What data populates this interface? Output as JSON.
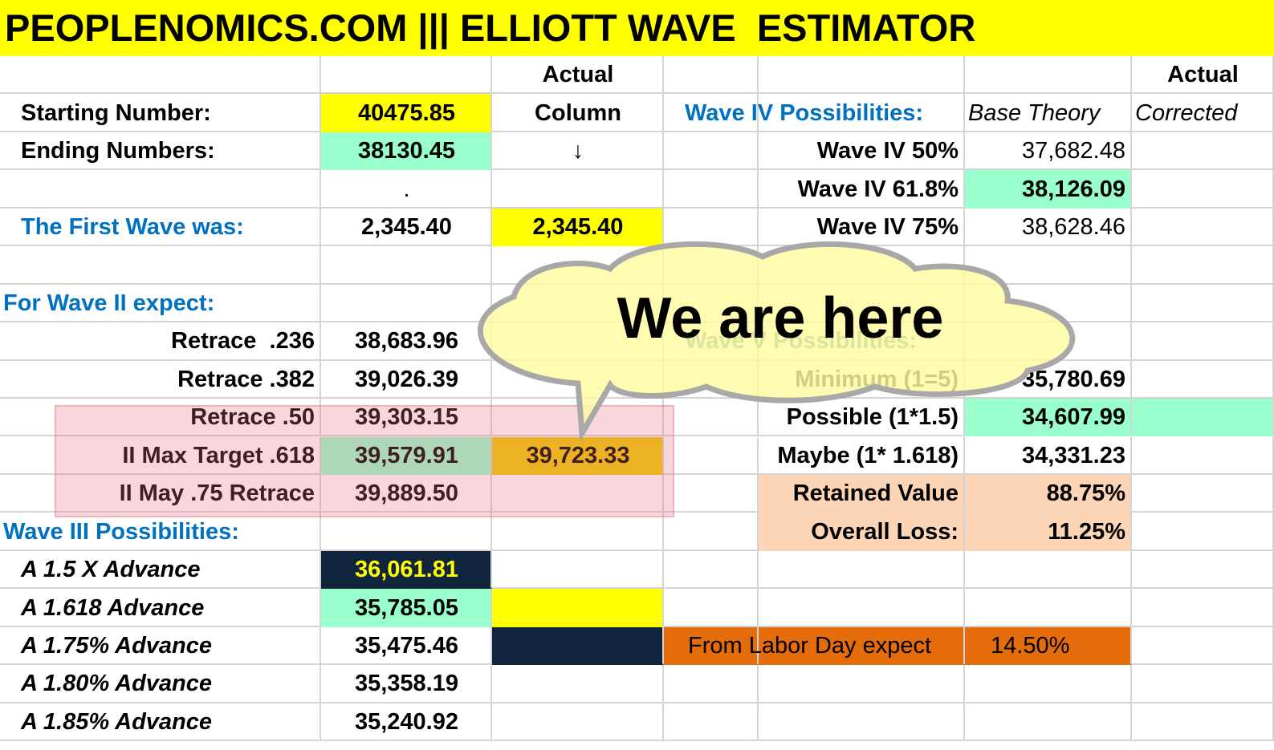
{
  "header": {
    "title": "PEOPLENOMICS.COM ||| ELLIOTT WAVE  ESTIMATOR"
  },
  "rows": [
    {
      "C": "Actual",
      "G": "Actual"
    },
    {
      "A": "Starting Number:",
      "B": "40475.85",
      "C": "Column",
      "D": "Wave IV Possibilities:",
      "F": "Base Theory",
      "G": "Corrected"
    },
    {
      "A": "Ending Numbers:",
      "B": "38130.45",
      "C": "↓",
      "E": "Wave IV 50%",
      "F": "37,682.48"
    },
    {
      "B": ".",
      "E": "Wave IV 61.8%",
      "F": "38,126.09"
    },
    {
      "A": "The First Wave was:",
      "B": "2,345.40",
      "C": "2,345.40",
      "E": "Wave IV 75%",
      "F": "38,628.46"
    },
    {},
    {
      "A": "For Wave II expect:"
    },
    {
      "A": "Retrace  .236",
      "B": "38,683.96",
      "D": "Wave V Possibilities:"
    },
    {
      "A": "Retrace .382",
      "B": "39,026.39",
      "E": "Minimum (1=5)",
      "F": "35,780.69"
    },
    {
      "A": "Retrace .50",
      "B": "39,303.15",
      "E": "Possible (1*1.5)",
      "F": "34,607.99"
    },
    {
      "A": "II Max Target .618",
      "B": "39,579.91",
      "C": "39,723.33",
      "E": "Maybe (1* 1.618)",
      "F": "34,331.23"
    },
    {
      "A": "II May .75 Retrace",
      "B": "39,889.50",
      "E": "Retained Value",
      "F": "88.75%"
    },
    {
      "A": "Wave III Possibilities:",
      "E": "Overall Loss:",
      "F": "11.25%"
    },
    {
      "A": "A 1.5 X Advance",
      "B": "36,061.81"
    },
    {
      "A": "A 1.618 Advance",
      "B": "35,785.05"
    },
    {
      "A": "A 1.75% Advance",
      "B": "35,475.46",
      "D": "From Labor Day expect",
      "F": "14.50%"
    },
    {
      "A": "A 1.80% Advance",
      "B": "35,358.19"
    },
    {
      "A": "A 1.85% Advance",
      "B": "35,240.92"
    }
  ],
  "callout": {
    "text": "We are here"
  }
}
